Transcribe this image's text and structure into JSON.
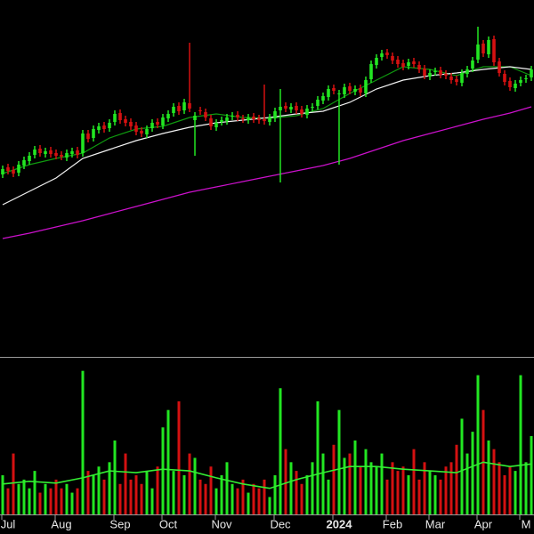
{
  "chart_data": {
    "type": "candlestick",
    "xlim": [
      -0.5,
      99.5
    ],
    "ylim": [
      0,
      400
    ],
    "volume_ylim": [
      0,
      180
    ],
    "up_color": "#22e622",
    "down_color": "#d41111",
    "xticks": [
      {
        "value": 1,
        "label": "Jul"
      },
      {
        "value": 11,
        "label": "Aug"
      },
      {
        "value": 22,
        "label": "Sep"
      },
      {
        "value": 31,
        "label": "Oct"
      },
      {
        "value": 41,
        "label": "Nov"
      },
      {
        "value": 52,
        "label": "Dec"
      },
      {
        "value": 63,
        "label": "2024"
      },
      {
        "value": 73,
        "label": "Feb"
      },
      {
        "value": 81,
        "label": "Mar"
      },
      {
        "value": 90,
        "label": "Apr"
      },
      {
        "value": 98,
        "label": "M"
      }
    ],
    "open": [
      204,
      212,
      209,
      206,
      214,
      219,
      226,
      233,
      227,
      231,
      228,
      226,
      223,
      227,
      231,
      228,
      250,
      245,
      254,
      259,
      256,
      263,
      273,
      266,
      263,
      259,
      253,
      249,
      256,
      263,
      259,
      267,
      273,
      281,
      276,
      284,
      265,
      276,
      274,
      267,
      257,
      263,
      264,
      269,
      271,
      267,
      265,
      269,
      267,
      266,
      263,
      267,
      276,
      281,
      277,
      281,
      277,
      271,
      279,
      281,
      287,
      291,
      301,
      294,
      294,
      303,
      297,
      301,
      295,
      311,
      327,
      336,
      341,
      337,
      333,
      329,
      326,
      331,
      327,
      323,
      314,
      319,
      321,
      317,
      314,
      311,
      307,
      317,
      323,
      333,
      351,
      339,
      356,
      331,
      317,
      309,
      301,
      307,
      311,
      313
    ],
    "high": [
      214,
      216,
      213,
      219,
      224,
      229,
      236,
      237,
      234,
      235,
      232,
      230,
      232,
      234,
      235,
      254,
      254,
      259,
      262,
      263,
      266,
      276,
      277,
      270,
      267,
      263,
      257,
      259,
      266,
      267,
      272,
      276,
      284,
      285,
      289,
      352,
      274,
      280,
      278,
      271,
      266,
      269,
      272,
      274,
      275,
      271,
      272,
      273,
      271,
      305,
      272,
      279,
      300,
      285,
      284,
      285,
      281,
      282,
      284,
      292,
      296,
      304,
      305,
      299,
      306,
      307,
      304,
      305,
      314,
      332,
      339,
      344,
      345,
      341,
      337,
      333,
      334,
      335,
      331,
      327,
      322,
      324,
      325,
      321,
      318,
      315,
      322,
      326,
      336,
      370,
      355,
      359,
      360,
      335,
      321,
      313,
      310,
      314,
      316,
      326
    ],
    "low": [
      200,
      204,
      201,
      202,
      210,
      215,
      222,
      224,
      223,
      223,
      221,
      220,
      219,
      223,
      222,
      224,
      240,
      241,
      250,
      251,
      252,
      259,
      261,
      258,
      254,
      248,
      246,
      245,
      252,
      256,
      255,
      263,
      269,
      271,
      272,
      274,
      225,
      271,
      264,
      254,
      253,
      259,
      260,
      265,
      264,
      262,
      261,
      262,
      261,
      260,
      259,
      263,
      195,
      274,
      273,
      272,
      268,
      267,
      275,
      277,
      283,
      287,
      294,
      215,
      290,
      294,
      293,
      292,
      291,
      307,
      323,
      332,
      334,
      328,
      324,
      321,
      322,
      324,
      318,
      311,
      310,
      315,
      312,
      311,
      306,
      304,
      303,
      313,
      319,
      329,
      336,
      335,
      326,
      314,
      304,
      298,
      297,
      303,
      307,
      309
    ],
    "close": [
      210,
      208,
      205,
      215,
      220,
      225,
      232,
      228,
      230,
      227,
      225,
      224,
      228,
      230,
      226,
      250,
      244,
      255,
      258,
      255,
      262,
      272,
      265,
      262,
      258,
      252,
      250,
      255,
      262,
      260,
      268,
      272,
      280,
      275,
      285,
      278,
      270,
      275,
      268,
      258,
      262,
      265,
      268,
      270,
      268,
      266,
      268,
      266,
      265,
      264,
      268,
      275,
      280,
      278,
      280,
      276,
      272,
      278,
      280,
      288,
      292,
      300,
      298,
      295,
      302,
      298,
      300,
      296,
      310,
      328,
      335,
      340,
      338,
      332,
      328,
      325,
      330,
      328,
      322,
      315,
      318,
      320,
      316,
      315,
      310,
      308,
      318,
      322,
      332,
      350,
      340,
      355,
      330,
      318,
      308,
      302,
      306,
      310,
      312,
      322
    ],
    "volume": [
      45,
      30,
      70,
      35,
      40,
      30,
      50,
      25,
      35,
      30,
      40,
      30,
      35,
      25,
      30,
      165,
      50,
      45,
      55,
      40,
      60,
      85,
      35,
      70,
      40,
      45,
      35,
      50,
      30,
      55,
      100,
      120,
      50,
      130,
      45,
      70,
      65,
      40,
      35,
      55,
      30,
      45,
      60,
      35,
      30,
      40,
      25,
      35,
      30,
      40,
      20,
      45,
      145,
      75,
      60,
      50,
      35,
      45,
      60,
      130,
      70,
      40,
      80,
      120,
      65,
      70,
      85,
      55,
      75,
      60,
      55,
      70,
      40,
      60,
      50,
      55,
      45,
      75,
      40,
      60,
      50,
      45,
      40,
      55,
      60,
      80,
      110,
      70,
      95,
      160,
      120,
      85,
      75,
      60,
      45,
      55,
      50,
      160,
      60,
      90
    ],
    "moving_averages": [
      {
        "color": "#0f9a0f",
        "x": [
          0,
          5,
          10,
          15,
          20,
          25,
          30,
          35,
          40,
          45,
          50,
          55,
          60,
          65,
          70,
          75,
          80,
          85,
          90,
          95,
          99
        ],
        "values": [
          205,
          215,
          222,
          228,
          245,
          255,
          258,
          268,
          272,
          268,
          267,
          270,
          278,
          295,
          310,
          325,
          322,
          315,
          325,
          325,
          315
        ]
      },
      {
        "color": "#f2f2f2",
        "x": [
          0,
          5,
          10,
          15,
          20,
          25,
          30,
          35,
          40,
          45,
          50,
          55,
          60,
          65,
          70,
          75,
          80,
          85,
          90,
          95,
          99
        ],
        "values": [
          170,
          185,
          200,
          222,
          232,
          242,
          250,
          257,
          262,
          265,
          268,
          272,
          275,
          285,
          300,
          310,
          315,
          318,
          322,
          325,
          322
        ]
      },
      {
        "color": "#cc11cc",
        "x": [
          0,
          5,
          10,
          15,
          20,
          25,
          30,
          35,
          40,
          45,
          50,
          55,
          60,
          65,
          70,
          75,
          80,
          85,
          90,
          95,
          99
        ],
        "values": [
          132,
          138,
          145,
          152,
          160,
          168,
          176,
          184,
          190,
          196,
          202,
          208,
          214,
          222,
          232,
          242,
          250,
          258,
          266,
          273,
          280
        ]
      }
    ],
    "volume_average": {
      "color": "#33ee33",
      "x": [
        0,
        5,
        10,
        15,
        20,
        25,
        30,
        35,
        40,
        45,
        50,
        55,
        60,
        65,
        70,
        75,
        80,
        85,
        90,
        95,
        99
      ],
      "values": [
        35,
        38,
        36,
        42,
        50,
        48,
        52,
        50,
        42,
        35,
        30,
        40,
        48,
        55,
        55,
        52,
        50,
        48,
        60,
        55,
        58
      ]
    }
  }
}
